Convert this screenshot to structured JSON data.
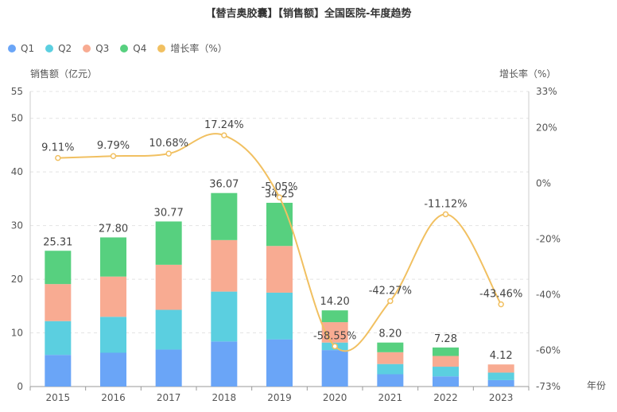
{
  "chart_data": {
    "type": "bar",
    "title": "【替吉奥胶囊】【销售额】全国医院-年度趋势",
    "categories": [
      "2015",
      "2016",
      "2017",
      "2018",
      "2019",
      "2020",
      "2021",
      "2022",
      "2023"
    ],
    "series": [
      {
        "name": "Q1",
        "color": "#6aa5f7",
        "values": [
          5.9,
          6.3,
          6.9,
          8.4,
          8.8,
          6.8,
          2.3,
          1.9,
          1.2
        ]
      },
      {
        "name": "Q2",
        "color": "#5bcfe0",
        "values": [
          6.3,
          6.7,
          7.4,
          9.3,
          8.7,
          1.4,
          1.9,
          1.8,
          1.4
        ]
      },
      {
        "name": "Q3",
        "color": "#f8ab92",
        "values": [
          6.9,
          7.5,
          8.4,
          9.6,
          8.7,
          3.8,
          2.2,
          2.0,
          1.52
        ]
      },
      {
        "name": "Q4",
        "color": "#57d07f",
        "values": [
          6.21,
          7.3,
          8.07,
          8.77,
          8.05,
          2.2,
          1.8,
          1.58,
          0
        ]
      }
    ],
    "totals": [
      "25.31",
      "27.80",
      "30.77",
      "36.07",
      "34.25",
      "14.20",
      "8.20",
      "7.28",
      "4.12"
    ],
    "line_series": {
      "name": "增长率（%）",
      "color": "#f1c061",
      "values": [
        9.11,
        9.79,
        10.68,
        17.24,
        -5.05,
        -58.55,
        -42.27,
        -11.12,
        -43.46
      ],
      "labels": [
        "9.11%",
        "9.79%",
        "10.68%",
        "17.24%",
        "-5.05%",
        "-58.55%",
        "-42.27%",
        "-11.12%",
        "-43.46%"
      ]
    },
    "ylabel": "销售额（亿元）",
    "y2label": "增长率（%）",
    "xlabel": "年份",
    "ylim": [
      0,
      55
    ],
    "yticks": [
      0,
      10,
      20,
      30,
      40,
      50,
      55
    ],
    "y2lim": [
      -73,
      33
    ],
    "y2ticks": [
      "33%",
      "20%",
      "0%",
      "-20%",
      "-40%",
      "-60%",
      "-73%"
    ],
    "y2tick_values": [
      33,
      20,
      0,
      -20,
      -40,
      -60,
      -73
    ]
  }
}
